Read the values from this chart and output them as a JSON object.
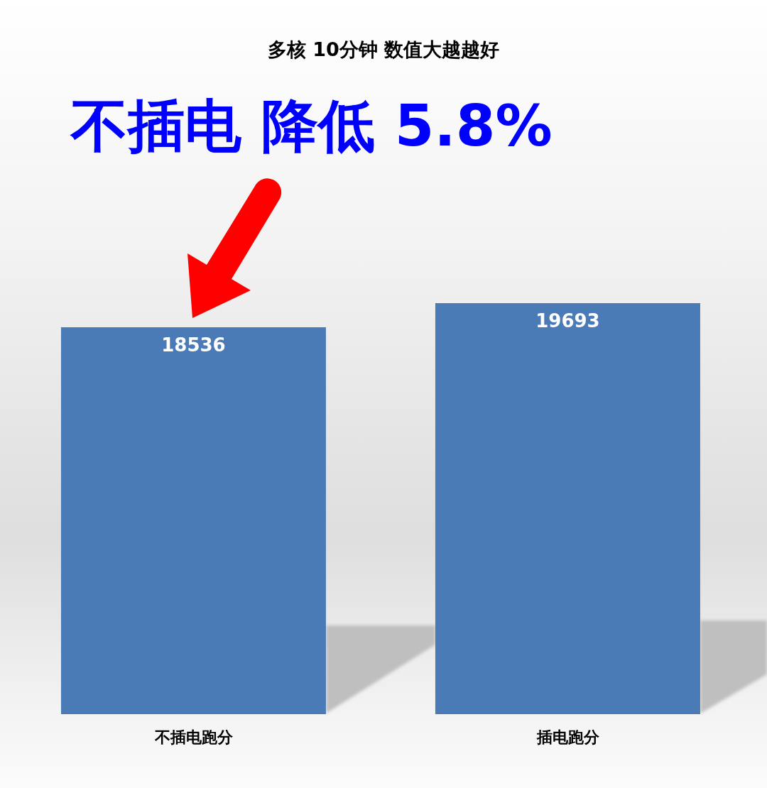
{
  "chart_data": {
    "type": "bar",
    "title": "多核 10分钟 数值大越越好",
    "annotations": [
      "不插电 降低 5.8%"
    ],
    "categories": [
      "不插电跑分",
      "插电跑分"
    ],
    "values": [
      18536,
      19693
    ],
    "color": "#4a7bb7",
    "data_labels": true
  }
}
